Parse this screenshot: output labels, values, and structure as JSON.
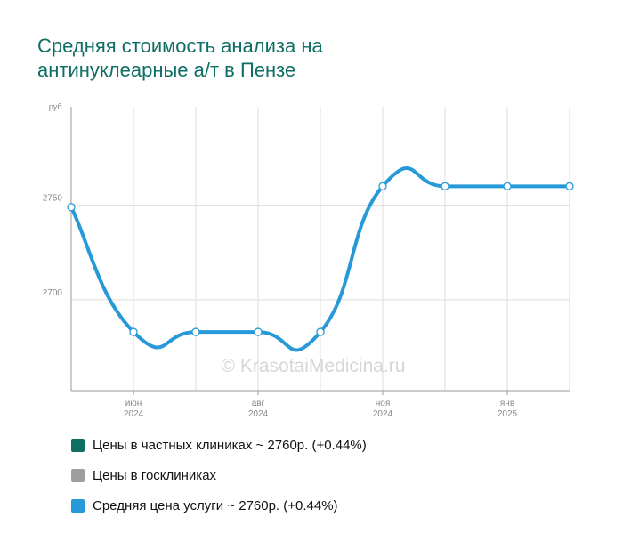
{
  "title_lines": [
    "Средняя стоимость анализа на",
    "антинуклеарные а/т в Пензе"
  ],
  "watermark": "© KrasotaiMedicina.ru",
  "colors": {
    "title": "#0e6e64",
    "private": "#0e6e64",
    "public": "#9e9e9e",
    "average": "#2799d8",
    "grid": "#dddddd",
    "axis": "#999999"
  },
  "legend": [
    {
      "label": "Цены в частных клиниках ~ 2760р. (+0.44%)",
      "color_key": "private"
    },
    {
      "label": "Цены в госклиниках",
      "color_key": "public"
    },
    {
      "label": "Средняя цена услуги ~ 2760р. (+0.44%)",
      "color_key": "average"
    }
  ],
  "chart_data": {
    "type": "line",
    "y_unit_label": "руб.",
    "ylim": [
      2652,
      2802
    ],
    "y_ticks": [
      2700,
      2750
    ],
    "x_ticks": [
      {
        "index": 1,
        "month": "июн",
        "year": "2024"
      },
      {
        "index": 3,
        "month": "авг",
        "year": "2024"
      },
      {
        "index": 5,
        "month": "ноя",
        "year": "2024"
      },
      {
        "index": 7,
        "month": "янв",
        "year": "2025"
      }
    ],
    "grid": true,
    "series": [
      {
        "name": "Средняя цена услуги ~ 2760р. (+0.44%)",
        "values": [
          2749,
          2683,
          2683,
          2683,
          2683,
          2760,
          2760,
          2760,
          2760
        ]
      }
    ]
  }
}
